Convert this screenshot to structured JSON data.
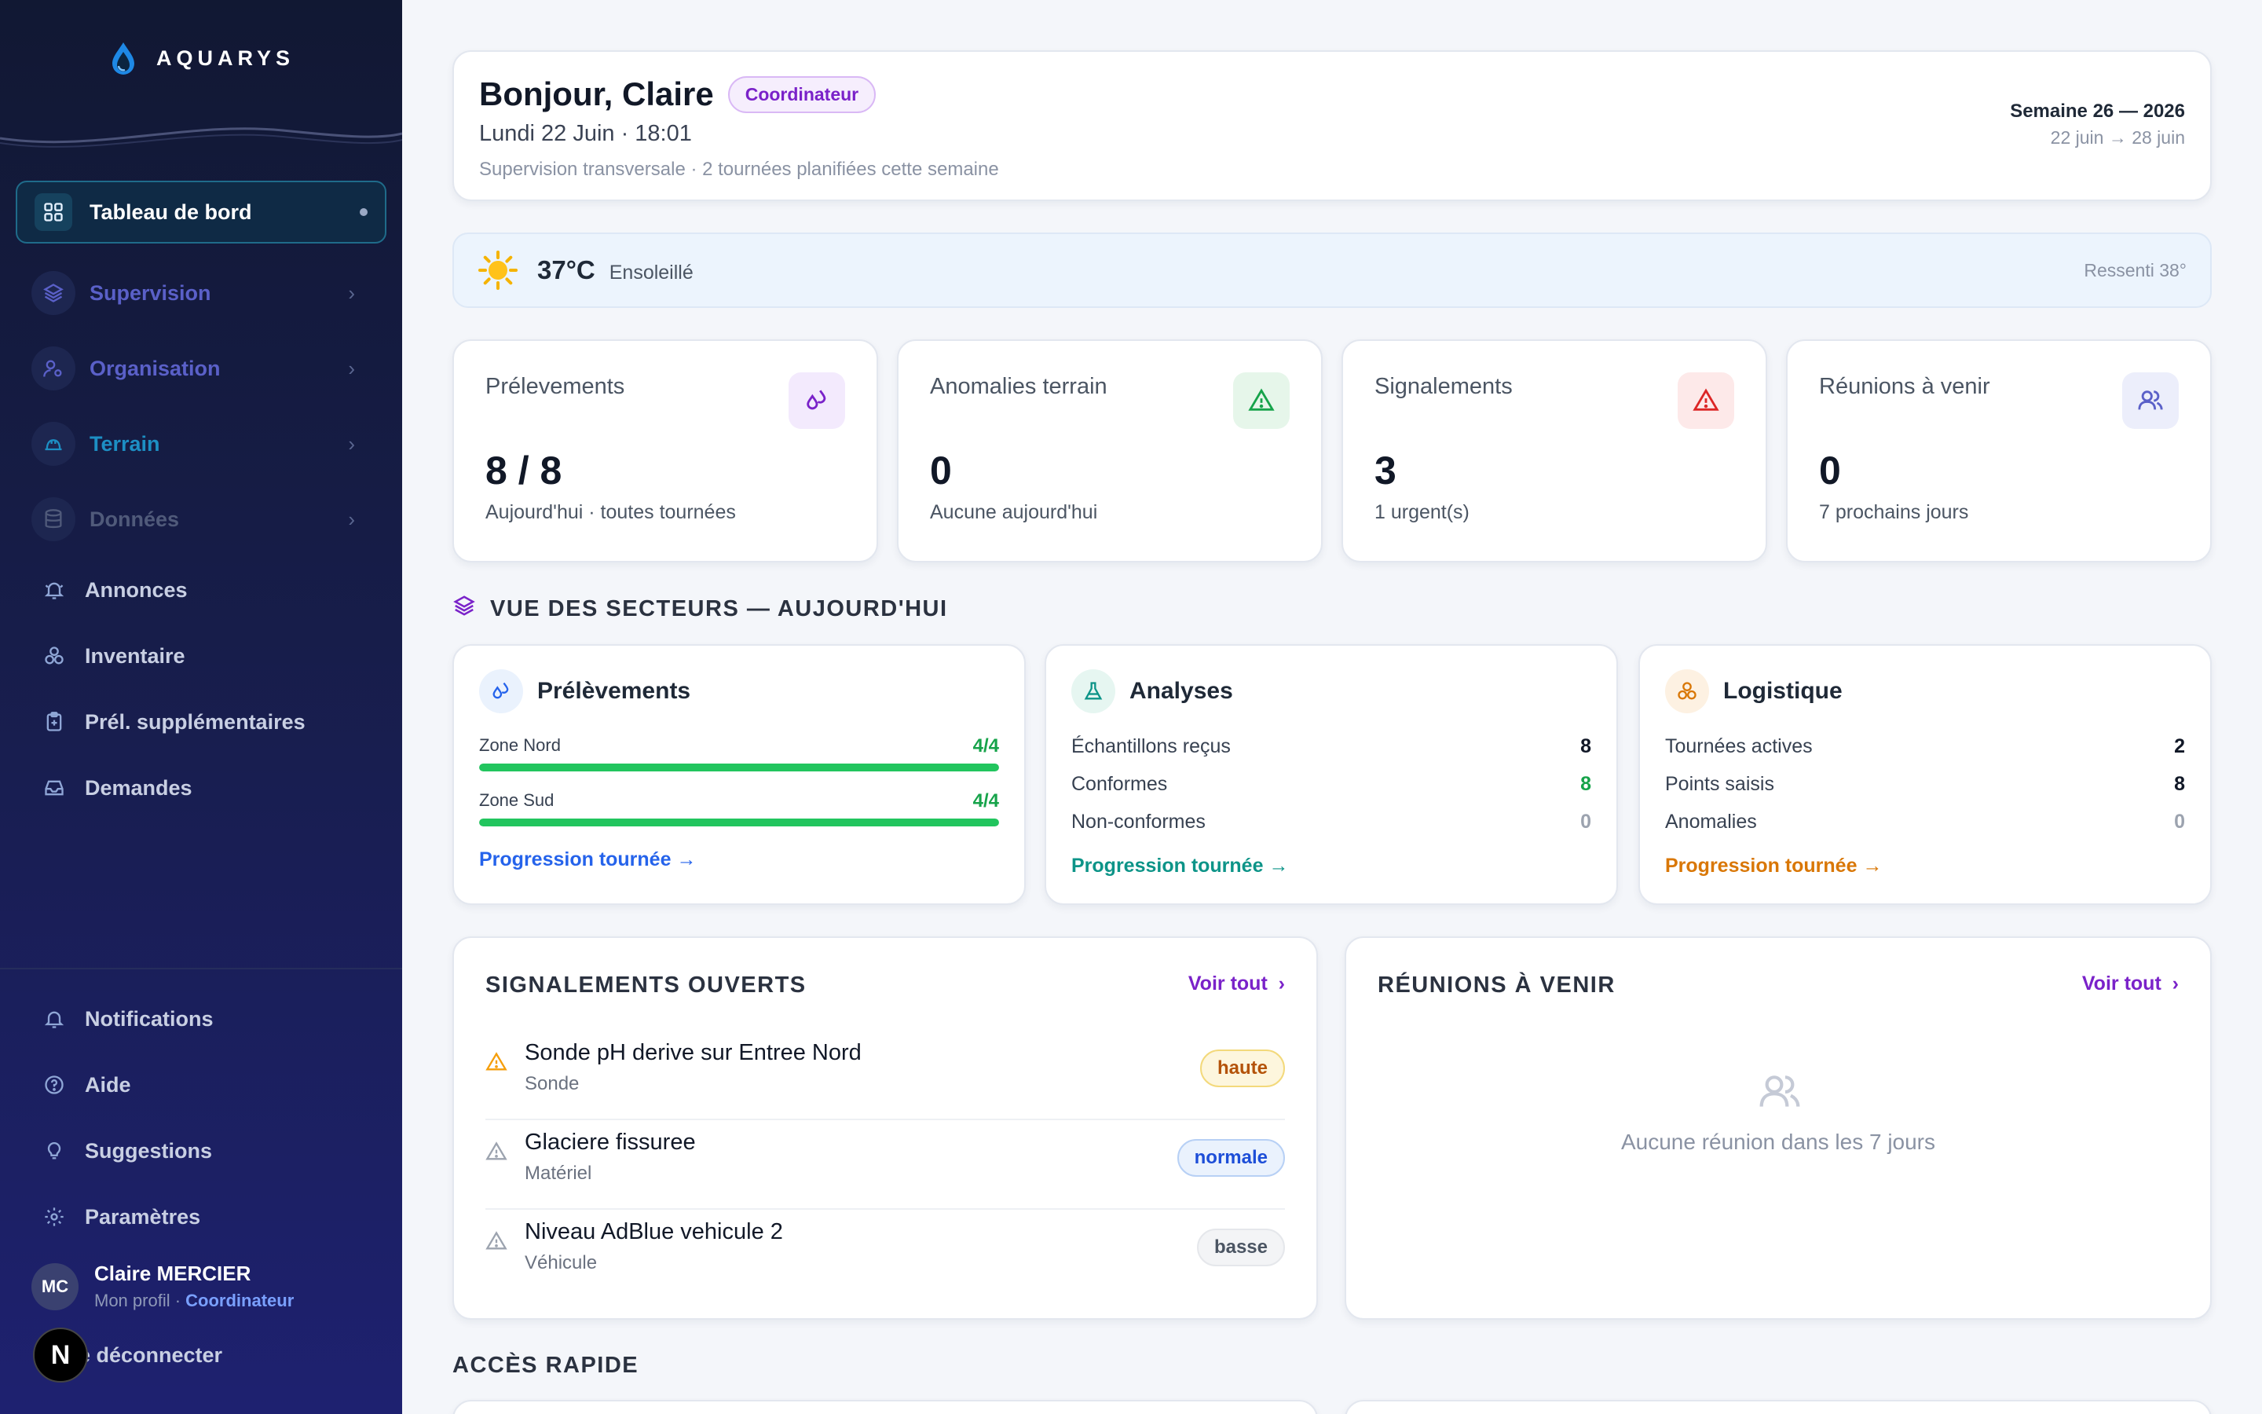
{
  "app": {
    "name": "AQUARYS"
  },
  "sidebar": {
    "active_item": "Tableau de bord",
    "groups": [
      {
        "label": "Supervision",
        "color": "#5a60c8"
      },
      {
        "label": "Organisation",
        "color": "#5a60c8"
      },
      {
        "label": "Terrain",
        "color": "#1d8fc4"
      },
      {
        "label": "Données",
        "color": "#505a7a"
      }
    ],
    "items": [
      "Annonces",
      "Inventaire",
      "Prél. supplémentaires",
      "Demandes"
    ],
    "bottom_items": [
      "Notifications",
      "Aide",
      "Suggestions",
      "Paramètres"
    ],
    "user": {
      "initials": "MC",
      "name": "Claire MERCIER",
      "profile_link": "Mon profil",
      "separator": "·",
      "role": "Coordinateur"
    },
    "logout_label": "e déconnecter",
    "overlay_badge": "N"
  },
  "header": {
    "greeting": "Bonjour, Claire",
    "role_badge": "Coordinateur",
    "date": "Lundi 22 Juin · 18:01",
    "subtitle": "Supervision transversale · 2 tournées planifiées cette semaine",
    "week": "Semaine 26 — 2026",
    "week_range": "22 juin → 28 juin"
  },
  "weather": {
    "icon": "sun-icon",
    "temperature": "37°C",
    "condition": "Ensoleillé",
    "feels_like": "Ressenti 38°"
  },
  "kpis": [
    {
      "title": "Prélevements",
      "value": "8 / 8",
      "subtitle": "Aujourd'hui · toutes tournées",
      "icon": "drops-icon",
      "color": "#7a22c9"
    },
    {
      "title": "Anomalies terrain",
      "value": "0",
      "subtitle": "Aucune aujourd'hui",
      "icon": "warning-icon",
      "color": "#16a34a"
    },
    {
      "title": "Signalements",
      "value": "3",
      "subtitle": "1 urgent(s)",
      "icon": "alert-icon",
      "color": "#dc2626"
    },
    {
      "title": "Réunions à venir",
      "value": "0",
      "subtitle": "7 prochains jours",
      "icon": "users-icon",
      "color": "#5a60c8"
    }
  ],
  "sectors": {
    "title": "VUE DES SECTEURS — AUJOURD'HUI",
    "prelevements": {
      "title": "Prélèvements",
      "zones": [
        {
          "label": "Zone Nord",
          "value": "4/4",
          "fraction": 1.0
        },
        {
          "label": "Zone Sud",
          "value": "4/4",
          "fraction": 1.0
        }
      ],
      "link": "Progression tournée →"
    },
    "analyses": {
      "title": "Analyses",
      "rows": [
        {
          "label": "Échantillons reçus",
          "value": "8"
        },
        {
          "label": "Conformes",
          "value": "8"
        },
        {
          "label": "Non-conformes",
          "value": "0"
        }
      ],
      "link": "Progression tournée →"
    },
    "logistique": {
      "title": "Logistique",
      "rows": [
        {
          "label": "Tournées actives",
          "value": "2"
        },
        {
          "label": "Points saisis",
          "value": "8"
        },
        {
          "label": "Anomalies",
          "value": "0"
        }
      ],
      "link": "Progression tournée →"
    }
  },
  "signalements": {
    "title": "SIGNALEMENTS OUVERTS",
    "see_all": "Voir tout",
    "items": [
      {
        "title": "Sonde pH derive sur Entree Nord",
        "category": "Sonde",
        "priority": "haute"
      },
      {
        "title": "Glaciere fissuree",
        "category": "Matériel",
        "priority": "normale"
      },
      {
        "title": "Niveau AdBlue vehicule 2",
        "category": "Véhicule",
        "priority": "basse"
      }
    ]
  },
  "reunions": {
    "title": "RÉUNIONS À VENIR",
    "see_all": "Voir tout",
    "empty": "Aucune réunion dans les 7 jours"
  },
  "quick_access": {
    "title": "ACCÈS RAPIDE"
  }
}
